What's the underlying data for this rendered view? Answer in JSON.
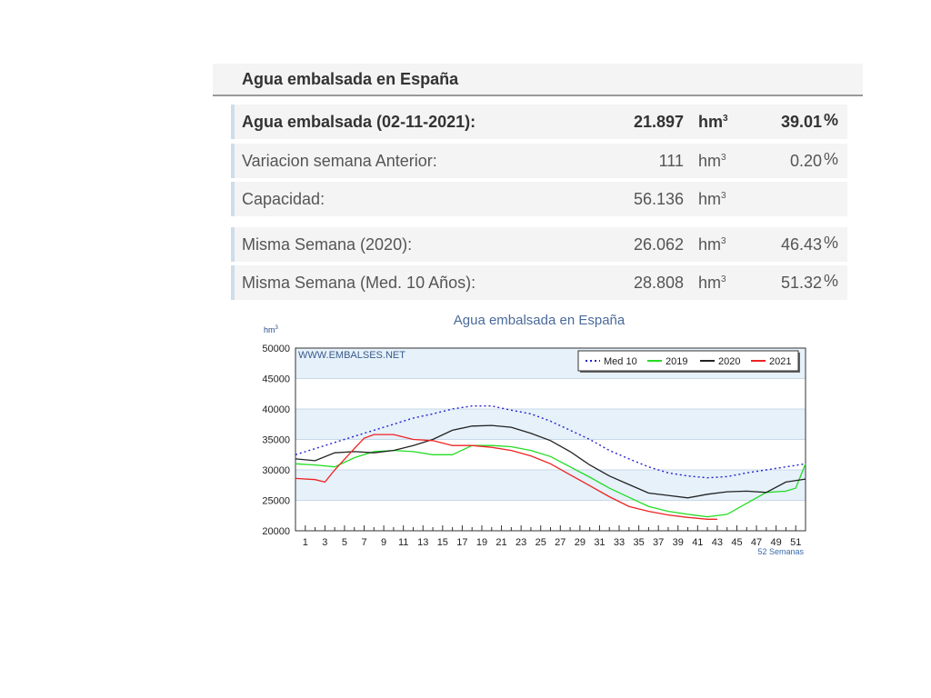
{
  "panel": {
    "title": "Agua embalsada en España"
  },
  "stats": [
    {
      "label": "Agua embalsada (02-11-2021):",
      "value": "21.897",
      "unit": "hm",
      "unit_sup": "3",
      "pct": "39.01",
      "pct_sym": "%",
      "bold": true
    },
    {
      "label": "Variacion semana Anterior:",
      "value": "111",
      "unit": "hm",
      "unit_sup": "3",
      "pct": "0.20",
      "pct_sym": "%",
      "bold": false
    },
    {
      "label": "Capacidad:",
      "value": "56.136",
      "unit": "hm",
      "unit_sup": "3",
      "pct": "",
      "pct_sym": "",
      "bold": false
    },
    {
      "label": "Misma Semana (2020):",
      "value": "26.062",
      "unit": "hm",
      "unit_sup": "3",
      "pct": "46.43",
      "pct_sym": "%",
      "bold": false
    },
    {
      "label": "Misma Semana (Med. 10 Años):",
      "value": "28.808",
      "unit": "hm",
      "unit_sup": "3",
      "pct": "51.32",
      "pct_sym": "%",
      "bold": false
    }
  ],
  "chart_data": {
    "type": "line",
    "title": "Agua embalsada en España",
    "ylabel": "hm",
    "ylabel_sup": "3",
    "xlabel": "52 Semanas",
    "watermark": "WWW.EMBALSES.NET",
    "ylim": [
      20000,
      50000
    ],
    "xlim": [
      0,
      52
    ],
    "yticks": [
      20000,
      25000,
      30000,
      35000,
      40000,
      45000,
      50000
    ],
    "xticks": [
      1,
      3,
      5,
      7,
      9,
      11,
      13,
      15,
      17,
      19,
      21,
      23,
      25,
      27,
      29,
      31,
      33,
      35,
      37,
      39,
      41,
      43,
      45,
      47,
      49,
      51
    ],
    "legend_position": "top-right",
    "series": [
      {
        "name": "Med 10",
        "color": "#2222cc",
        "dashed": true,
        "x": [
          0,
          2,
          4,
          6,
          8,
          10,
          12,
          14,
          16,
          18,
          20,
          22,
          24,
          26,
          28,
          30,
          32,
          34,
          36,
          38,
          40,
          42,
          44,
          46,
          48,
          50,
          52
        ],
        "y": [
          32500,
          33500,
          34500,
          35500,
          36500,
          37500,
          38500,
          39200,
          40000,
          40500,
          40500,
          39800,
          39200,
          38000,
          36500,
          35000,
          33200,
          31800,
          30500,
          29500,
          29000,
          28700,
          28900,
          29500,
          30000,
          30500,
          31000
        ]
      },
      {
        "name": "2019",
        "color": "#22dd22",
        "dashed": false,
        "x": [
          0,
          2,
          4,
          6,
          8,
          10,
          12,
          14,
          16,
          18,
          20,
          22,
          24,
          26,
          28,
          30,
          32,
          34,
          36,
          38,
          40,
          42,
          44,
          46,
          48,
          50,
          51,
          52
        ],
        "y": [
          31000,
          30800,
          30500,
          32000,
          33000,
          33200,
          33000,
          32500,
          32500,
          34000,
          34000,
          33800,
          33200,
          32200,
          30500,
          28800,
          27000,
          25500,
          24000,
          23200,
          22700,
          22300,
          22700,
          24500,
          26300,
          26500,
          27000,
          31000
        ]
      },
      {
        "name": "2020",
        "color": "#222222",
        "dashed": false,
        "x": [
          0,
          2,
          4,
          6,
          8,
          10,
          12,
          14,
          16,
          18,
          20,
          22,
          24,
          26,
          28,
          30,
          32,
          34,
          36,
          38,
          40,
          42,
          44,
          46,
          48,
          50,
          52
        ],
        "y": [
          31800,
          31500,
          32800,
          33000,
          32800,
          33200,
          34000,
          35000,
          36500,
          37200,
          37300,
          37000,
          36000,
          34800,
          33000,
          30800,
          29000,
          27600,
          26200,
          25800,
          25400,
          26000,
          26400,
          26500,
          26300,
          28000,
          28500
        ]
      },
      {
        "name": "2021",
        "color": "#ee2222",
        "dashed": false,
        "x": [
          0,
          2,
          3,
          4,
          6,
          7,
          8,
          10,
          12,
          14,
          16,
          18,
          20,
          22,
          24,
          26,
          28,
          30,
          32,
          34,
          36,
          38,
          40,
          42,
          43
        ],
        "y": [
          28600,
          28400,
          28000,
          30000,
          33500,
          35200,
          35800,
          35800,
          35000,
          34800,
          34000,
          34000,
          33700,
          33200,
          32300,
          31000,
          29200,
          27400,
          25600,
          24000,
          23200,
          22600,
          22200,
          21900,
          21897
        ]
      }
    ]
  }
}
